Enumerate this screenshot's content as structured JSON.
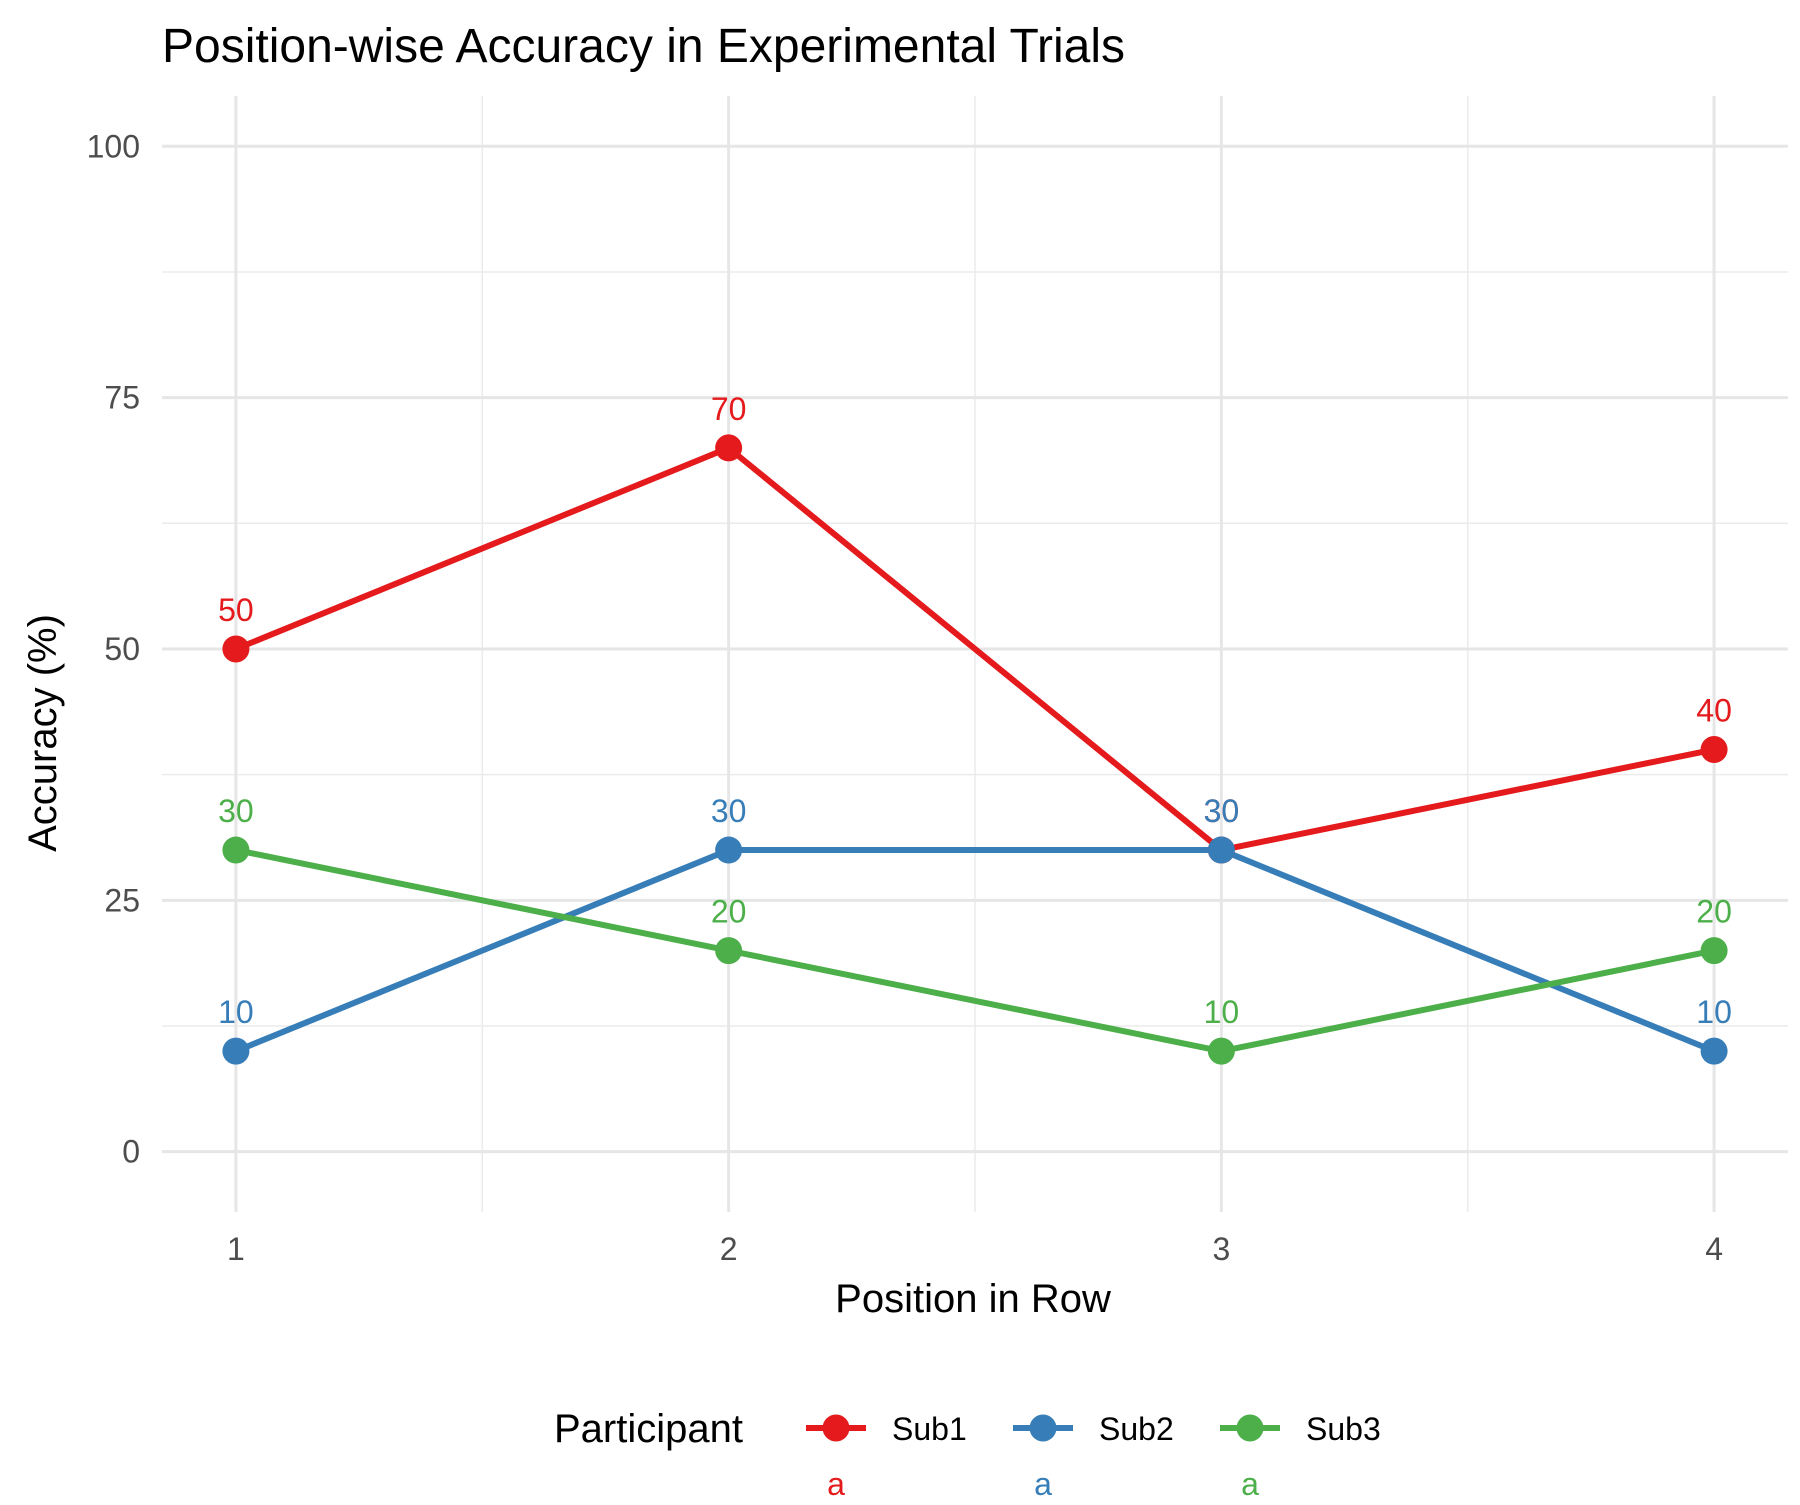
{
  "chart_data": {
    "type": "line",
    "title": "Position-wise Accuracy in Experimental Trials",
    "xlabel": "Position in Row",
    "ylabel": "Accuracy (%)",
    "x": [
      1,
      2,
      3,
      4
    ],
    "x_tick_labels": [
      "1",
      "2",
      "3",
      "4"
    ],
    "xlim": [
      0.85,
      4.15
    ],
    "ylim": [
      -6,
      105
    ],
    "y_ticks": [
      0,
      25,
      50,
      75,
      100
    ],
    "y_tick_labels": [
      "0",
      "25",
      "50",
      "75",
      "100"
    ],
    "grid": true,
    "data_labels": true,
    "legend": {
      "title": "Participant",
      "placement": "bottom",
      "glyph_label": "a"
    },
    "series": [
      {
        "name": "Sub1",
        "color": "#E41A1C",
        "values": [
          50,
          70,
          30,
          40
        ]
      },
      {
        "name": "Sub2",
        "color": "#377EB8",
        "values": [
          10,
          30,
          30,
          10
        ]
      },
      {
        "name": "Sub3",
        "color": "#4DAF4A",
        "values": [
          30,
          20,
          10,
          20
        ]
      }
    ]
  }
}
